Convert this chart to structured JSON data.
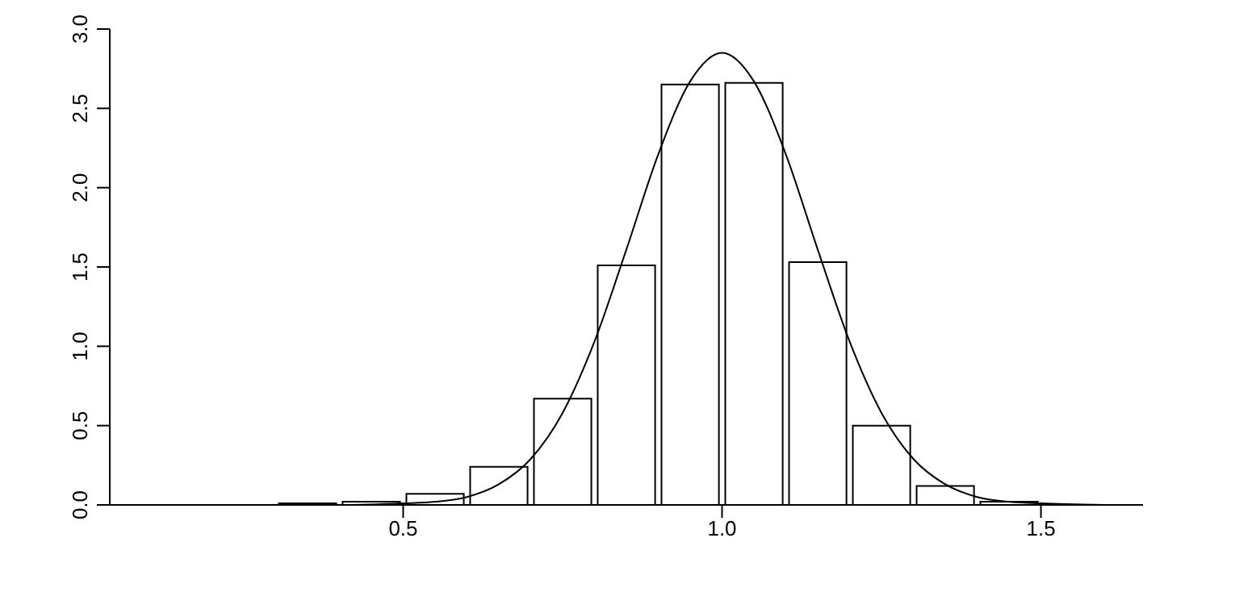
{
  "chart_data": {
    "type": "histogram",
    "bins": [
      0.3,
      0.4,
      0.5,
      0.6,
      0.7,
      0.8,
      0.9,
      1.0,
      1.1,
      1.2,
      1.3,
      1.4,
      1.5
    ],
    "values": [
      0.01,
      0.02,
      0.07,
      0.24,
      0.67,
      1.51,
      2.65,
      2.66,
      1.53,
      0.5,
      0.12,
      0.02
    ],
    "color": "#000000",
    "series": [
      {
        "type": "line",
        "color": "#000000",
        "x": [
          0.1,
          0.3,
          0.4,
          0.5,
          0.55,
          0.6,
          0.65,
          0.7,
          0.75,
          0.8,
          0.85,
          0.9,
          0.95,
          1.0,
          1.05,
          1.1,
          1.15,
          1.2,
          1.25,
          1.3,
          1.35,
          1.4,
          1.45,
          1.5,
          1.6
        ],
        "values": [
          0,
          0,
          0,
          0.01,
          0.02,
          0.05,
          0.13,
          0.29,
          0.58,
          1.03,
          1.61,
          2.21,
          2.67,
          2.85,
          2.67,
          2.21,
          1.61,
          1.03,
          0.58,
          0.29,
          0.13,
          0.05,
          0.02,
          0.01,
          0
        ]
      }
    ],
    "xlim": [
      0.04,
      1.66
    ],
    "xticks": [
      0.5,
      {
        "value": 1.0,
        "label": "1.0"
      },
      1.5
    ],
    "ylim": [
      0,
      3
    ],
    "yticks": [
      {
        "value": 0,
        "label": "0.0"
      },
      0.5,
      {
        "value": 1,
        "label": "1.0"
      },
      1.5,
      {
        "value": 2,
        "label": "2.0"
      },
      2.5,
      {
        "value": 3,
        "label": "3.0"
      }
    ],
    "grid": false,
    "legend": false
  }
}
